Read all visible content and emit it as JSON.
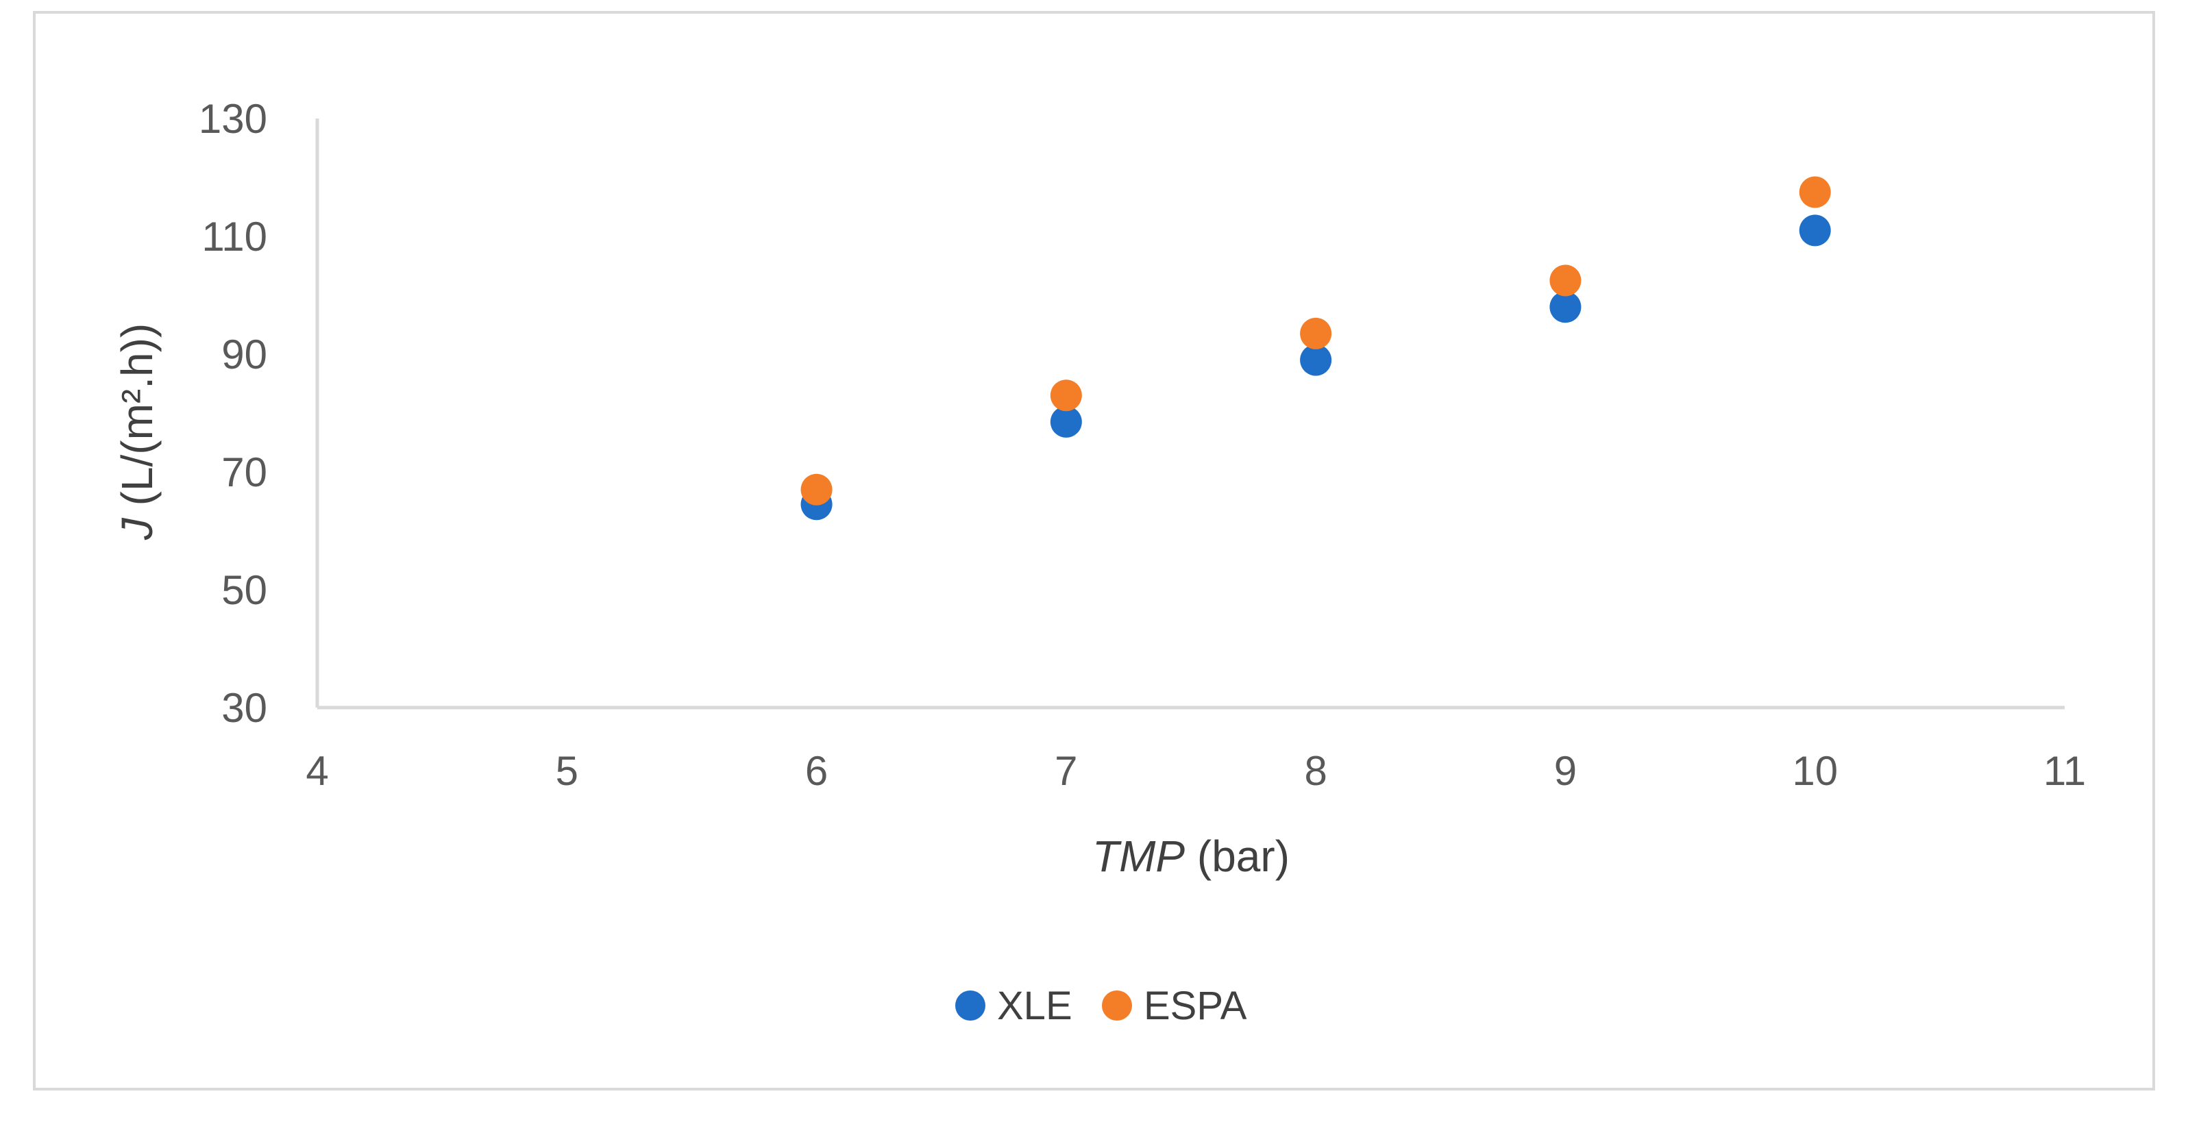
{
  "chart_data": {
    "type": "scatter",
    "title": "",
    "xlabel": {
      "italic": "TMP",
      "normal": " (bar)"
    },
    "ylabel": {
      "italic": "J",
      "normal": " (L/(m².h))"
    },
    "xlim": [
      4,
      11
    ],
    "ylim": [
      30,
      130
    ],
    "x_ticks": [
      4,
      5,
      6,
      7,
      8,
      9,
      10,
      11
    ],
    "y_ticks": [
      30,
      50,
      70,
      90,
      110,
      130
    ],
    "grid": false,
    "legend_position": "bottom",
    "series": [
      {
        "name": "XLE",
        "color": "#1f6fc8",
        "points": [
          {
            "x": 6,
            "y": 64.5
          },
          {
            "x": 7,
            "y": 78.5
          },
          {
            "x": 8,
            "y": 89
          },
          {
            "x": 9,
            "y": 98
          },
          {
            "x": 10,
            "y": 111
          }
        ]
      },
      {
        "name": "ESPA",
        "color": "#f47e28",
        "points": [
          {
            "x": 6,
            "y": 67
          },
          {
            "x": 7,
            "y": 83
          },
          {
            "x": 8,
            "y": 93.5
          },
          {
            "x": 9,
            "y": 102.5
          },
          {
            "x": 10,
            "y": 117.5
          }
        ]
      }
    ]
  }
}
